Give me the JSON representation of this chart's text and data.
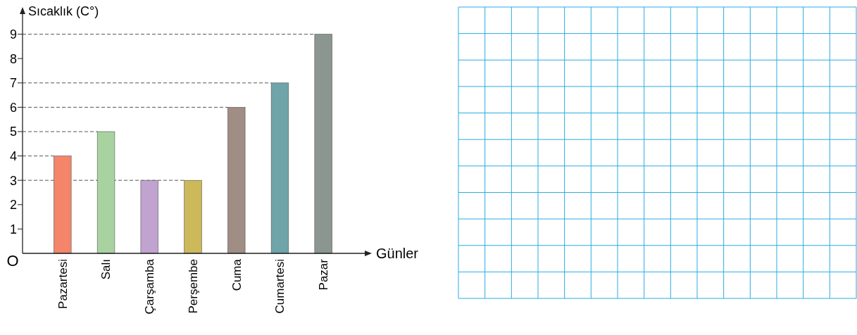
{
  "chart_data": {
    "type": "bar",
    "ylabel": "Sıcaklık (C°)",
    "xlabel": "Günler",
    "categories": [
      "Pazartesi",
      "Salı",
      "Çarşamba",
      "Perşembe",
      "Cuma",
      "Cumartesi",
      "Pazar"
    ],
    "values": [
      4,
      5,
      3,
      3,
      6,
      7,
      9
    ],
    "colors": [
      "#f4856a",
      "#a8d3a0",
      "#c0a3cf",
      "#cbb95a",
      "#a08d84",
      "#6fa4a8",
      "#8c9690"
    ],
    "ylim": [
      0,
      10
    ],
    "yticks": [
      {
        "value": 0,
        "label": "O"
      },
      1,
      2,
      3,
      4,
      5,
      6,
      7,
      8,
      9
    ],
    "ref_lines": [
      {
        "axis": "y",
        "value": 3,
        "line_style": "dashed"
      },
      {
        "axis": "y",
        "value": 4,
        "line_style": "dashed"
      },
      {
        "axis": "y",
        "value": 5,
        "line_style": "dashed"
      },
      {
        "axis": "y",
        "value": 6,
        "line_style": "dashed"
      },
      {
        "axis": "y",
        "value": 7,
        "line_style": "dashed"
      },
      {
        "axis": "y",
        "value": 9,
        "line_style": "dashed"
      }
    ]
  }
}
